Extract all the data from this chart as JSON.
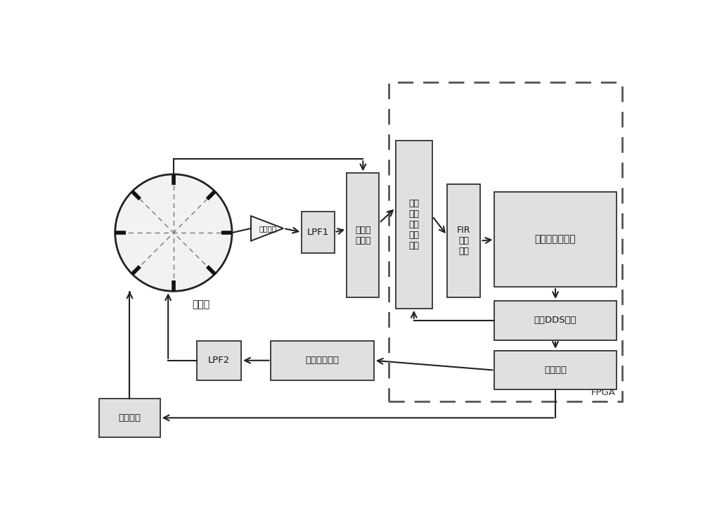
{
  "bg_color": "#ffffff",
  "box_fill": "#e0e0e0",
  "box_edge": "#333333",
  "arrow_color": "#222222",
  "resonator_label": "谐振子",
  "buffer_label": "缓冲电路",
  "lpf1_label": "LPF1",
  "adc_label": "模数转\n换模块",
  "demod_label": "激励\n检测\n信号\n解调\n模块",
  "fir_label": "FIR\n滤波\n模块",
  "pll_label": "数字锁相环模块",
  "dds_label": "数字DDS模块",
  "mod_label": "调制模块",
  "dac_label": "数模转换模块",
  "lpf2_label": "LPF2",
  "sweep_label": "扫频模块",
  "fpga_label": "FPGA",
  "figsize": [
    10.0,
    7.44
  ],
  "dpi": 100,
  "xlim": [
    0,
    10
  ],
  "ylim": [
    0,
    7.44
  ]
}
